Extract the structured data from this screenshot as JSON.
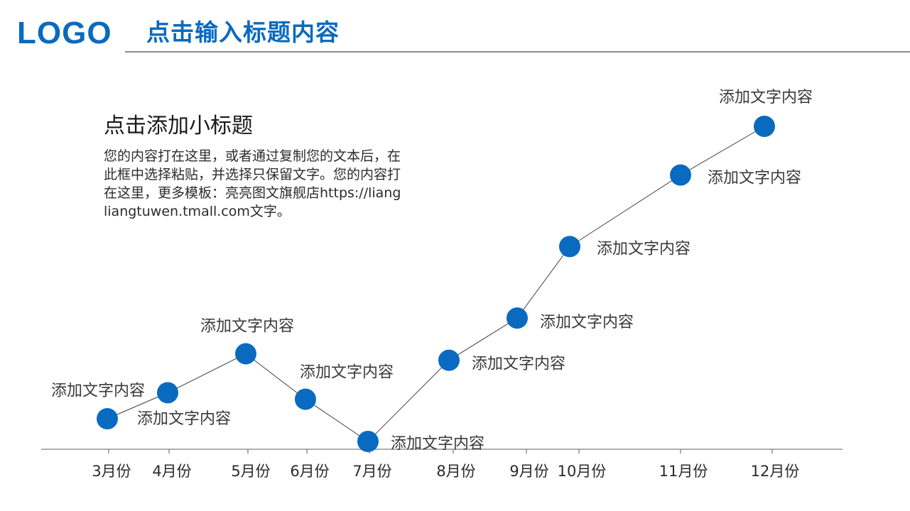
{
  "header": {
    "logo": "LOGO",
    "title": "点击输入标题内容"
  },
  "content": {
    "subtitle": "点击添加小标题",
    "body": "您的内容打在这里，或者通过复制您的文本后，在此框中选择粘贴，并选择只保留文字。您的内容打在这里，更多模板：亮亮图文旗舰店https://liangliangtuwen.tmall.com文字。"
  },
  "colors": {
    "accent": "#0a6abf",
    "line": "#404040",
    "axis": "#7f7f7f"
  },
  "chart_data": {
    "type": "line",
    "categories": [
      "3月份",
      "4月份",
      "5月份",
      "6月份",
      "7月份",
      "8月份",
      "9月份",
      "10月份",
      "11月份",
      "12月份"
    ],
    "values": [
      1.0,
      1.8,
      3.0,
      1.6,
      0.3,
      2.8,
      4.1,
      6.3,
      8.5,
      10.0
    ],
    "point_labels": [
      "添加文字内容",
      "添加文字内容",
      "添加文字内容",
      "添加文字内容",
      "添加文字内容",
      "添加文字内容",
      "添加文字内容",
      "添加文字内容",
      "添加文字内容",
      "添加文字内容"
    ],
    "xlabel": "",
    "ylabel": "",
    "ylim": [
      0,
      10.5
    ],
    "grid": false,
    "legend": "none"
  }
}
